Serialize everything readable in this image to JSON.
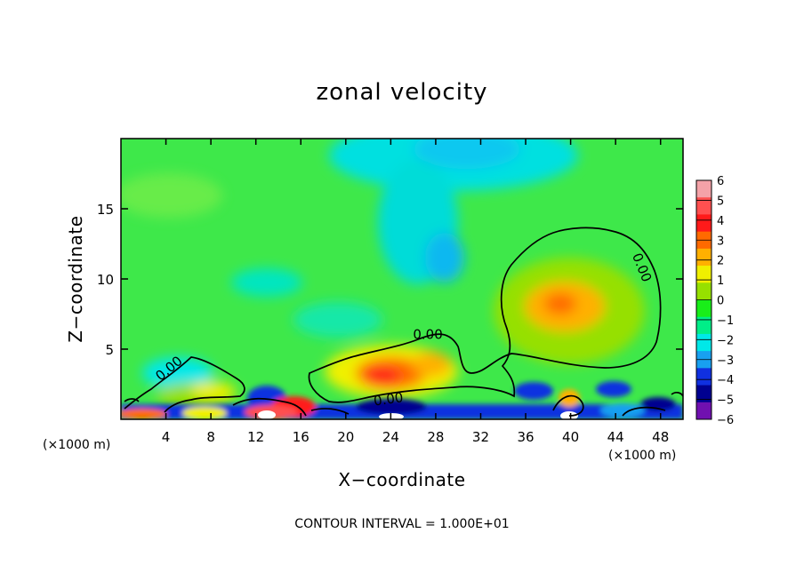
{
  "chart_data": {
    "type": "heatmap",
    "title": "zonal velocity",
    "xlabel": "X−coordinate",
    "ylabel": "Z−coordinate",
    "x_unit_left": "(×1000 m)",
    "x_unit_right": "(×1000 m)",
    "xlim": [
      0,
      50
    ],
    "ylim": [
      0,
      20
    ],
    "xticks": [
      4,
      8,
      12,
      16,
      20,
      24,
      28,
      32,
      36,
      40,
      44,
      48
    ],
    "yticks": [
      5,
      10,
      15
    ],
    "contour_level_label": "0.00",
    "contour_labels": [
      {
        "text": "0.00",
        "x": 4.3,
        "y": 3.6,
        "angle": -40
      },
      {
        "text": "0.00",
        "x": 27.3,
        "y": 6.0,
        "angle": 0
      },
      {
        "text": "0.00",
        "x": 23.8,
        "y": 1.4,
        "angle": -8
      },
      {
        "text": "0.00",
        "x": 46.3,
        "y": 10.8,
        "angle": 68
      }
    ],
    "colorbar": {
      "labels": [
        "6",
        "5",
        "4",
        "3",
        "2",
        "1",
        "0",
        "−1",
        "−2",
        "−3",
        "−4",
        "−5",
        "−6"
      ],
      "colors": [
        "#f4a2a8",
        "#ff5050",
        "#ff1a1a",
        "#ff6a00",
        "#ffb000",
        "#f0f000",
        "#96e000",
        "#19ee19",
        "#00ee88",
        "#00e8e8",
        "#18a0f0",
        "#1030e0",
        "#000090",
        "#7010b0"
      ]
    },
    "note": "CONTOUR INTERVAL = 1.000E+01"
  }
}
